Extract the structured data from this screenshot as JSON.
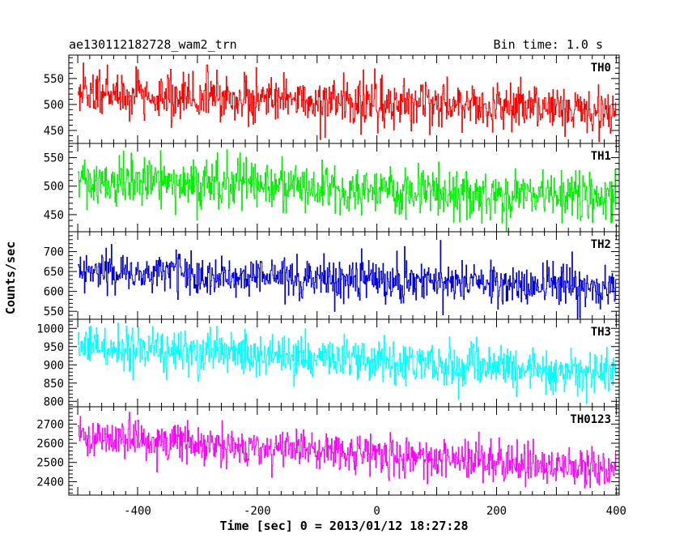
{
  "chart_data": {
    "type": "line",
    "title_left": "ae130112182728_wam2_trn",
    "title_right": "Bin time: 1.0 s",
    "xlabel": "Time [sec] 0 = 2013/01/12 18:27:28",
    "ylabel": "Counts/sec",
    "xlim": [
      -515,
      405
    ],
    "xticks": [
      -400,
      -200,
      0,
      200,
      400
    ],
    "bin_time_s": 1.0,
    "x_start": -500,
    "x_end": 399,
    "grid": false,
    "panels": [
      {
        "name": "TH0",
        "color": "#ff0000",
        "ylim": [
          425,
          595
        ],
        "yticks": [
          450,
          500,
          550
        ],
        "trend_start": 522,
        "trend_end": 487,
        "noise_sd": 22
      },
      {
        "name": "TH1",
        "color": "#00ee00",
        "ylim": [
          420,
          575
        ],
        "yticks": [
          450,
          500,
          550
        ],
        "trend_start": 512,
        "trend_end": 478,
        "noise_sd": 21
      },
      {
        "name": "TH2",
        "color": "#0000dd",
        "ylim": [
          530,
          750
        ],
        "yticks": [
          550,
          600,
          650,
          700
        ],
        "trend_start": 650,
        "trend_end": 612,
        "noise_sd": 25
      },
      {
        "name": "TH3",
        "color": "#00ffff",
        "ylim": [
          785,
          1025
        ],
        "yticks": [
          800,
          850,
          900,
          950,
          1000
        ],
        "trend_start": 950,
        "trend_end": 878,
        "noise_sd": 30
      },
      {
        "name": "TH0123",
        "color": "#ff00ff",
        "ylim": [
          2330,
          2790
        ],
        "yticks": [
          2400,
          2500,
          2600,
          2700
        ],
        "trend_start": 2640,
        "trend_end": 2460,
        "noise_sd": 50
      }
    ]
  }
}
